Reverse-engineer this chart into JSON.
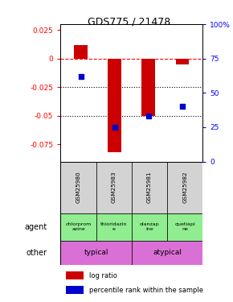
{
  "title": "GDS775 / 21478",
  "samples": [
    "GSM25980",
    "GSM25983",
    "GSM25981",
    "GSM25982"
  ],
  "log_ratios": [
    0.012,
    -0.082,
    -0.05,
    -0.005
  ],
  "percentile_ranks": [
    62,
    25,
    33,
    40
  ],
  "agent_labels": [
    "chlorprom\nazine",
    "thioridazin\ne",
    "olanzap\nine",
    "quetiapi\nne"
  ],
  "other_labels": [
    "typical",
    "atypical"
  ],
  "bar_color": "#cc0000",
  "dot_color": "#0000cc",
  "agent_bg": "#90ee90",
  "gsm_bg": "#d3d3d3",
  "other_bg": "#da70d6",
  "ylim_left": [
    -0.09,
    0.03
  ],
  "ylim_right": [
    0,
    100
  ],
  "yticks_left": [
    0.025,
    0,
    -0.025,
    -0.05,
    -0.075
  ],
  "yticks_right": [
    100,
    75,
    50,
    25,
    0
  ],
  "dotted_lines": [
    -0.025,
    -0.05
  ],
  "legend_red": "log ratio",
  "legend_blue": "percentile rank within the sample",
  "agent_row_label": "agent",
  "other_row_label": "other"
}
